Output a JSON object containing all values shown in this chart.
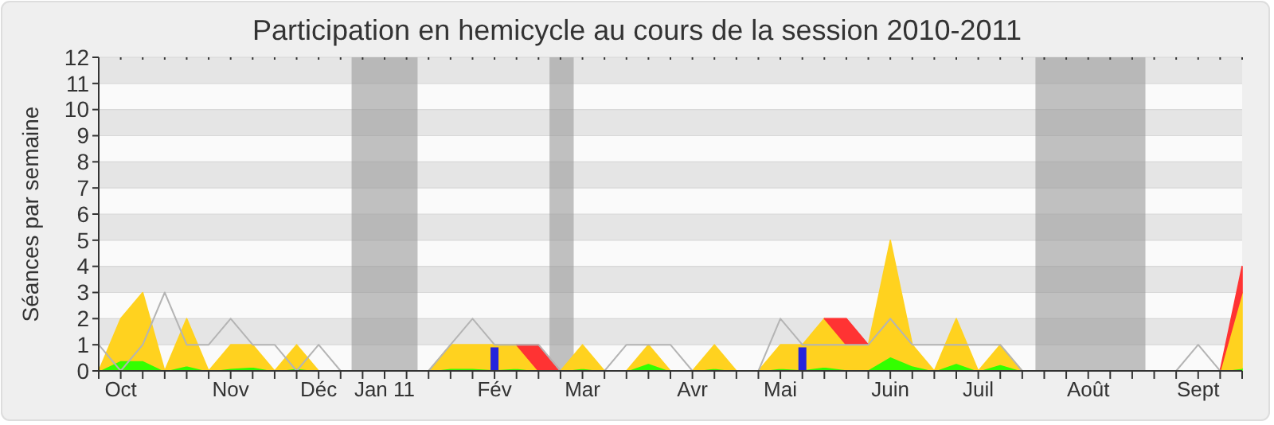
{
  "chart_data": {
    "type": "area",
    "title": "Participation en hemicycle au cours de la session 2010-2011",
    "ylabel": "Séances par semaine",
    "categories": [
      null,
      "Oct",
      null,
      null,
      null,
      null,
      "Nov",
      null,
      null,
      null,
      "Déc",
      null,
      null,
      "Jan 11",
      null,
      null,
      null,
      null,
      "Fév",
      null,
      null,
      null,
      "Mar",
      null,
      null,
      null,
      null,
      "Avr",
      null,
      null,
      null,
      "Mai",
      null,
      null,
      null,
      null,
      "Juin",
      null,
      null,
      null,
      "Juil",
      null,
      null,
      null,
      null,
      "Août",
      null,
      null,
      null,
      null,
      "Sept",
      null,
      null
    ],
    "ylim": [
      0,
      12
    ],
    "yticks": [
      0,
      1,
      2,
      3,
      4,
      5,
      6,
      7,
      8,
      9,
      10,
      11,
      12
    ],
    "grid": "y",
    "stacked": true,
    "series": [
      {
        "type": "area",
        "color": "#33ff00",
        "values": [
          0,
          0.4,
          0.4,
          0,
          0.2,
          0,
          0.1,
          0.15,
          0,
          0.1,
          0,
          0,
          0,
          0,
          0,
          0,
          0.1,
          0.1,
          0.05,
          0.1,
          0,
          0,
          0.1,
          0,
          0,
          0.3,
          0,
          0,
          0.1,
          0,
          0,
          0.1,
          0.05,
          0.15,
          0.05,
          0.05,
          0.55,
          0.2,
          0,
          0.3,
          0,
          0.25,
          0,
          0,
          0,
          0,
          0,
          0,
          0,
          0,
          0,
          0,
          0.1
        ]
      },
      {
        "type": "area",
        "color": "#ffd21f",
        "values": [
          0,
          1.6,
          2.6,
          0,
          1.8,
          0,
          0.9,
          0.85,
          0,
          0.9,
          0,
          0,
          0,
          0,
          0,
          0,
          0.9,
          0.9,
          0.95,
          0.9,
          0,
          0,
          0.9,
          0,
          0,
          0.7,
          0,
          0,
          0.9,
          0,
          0,
          0.9,
          0.95,
          1.85,
          0.95,
          0.95,
          4.45,
          0.8,
          0,
          1.7,
          0,
          0.75,
          0,
          0,
          0,
          0,
          0,
          0,
          0,
          0,
          0,
          0,
          2.9
        ]
      },
      {
        "color": "#ff3333",
        "values": [
          null,
          null,
          null,
          null,
          null,
          null,
          null,
          null,
          null,
          null,
          null,
          null,
          null,
          null,
          null,
          null,
          null,
          null,
          null,
          0,
          1,
          0,
          null,
          null,
          null,
          null,
          null,
          null,
          null,
          null,
          null,
          null,
          null,
          0,
          1,
          0,
          null,
          null,
          null,
          null,
          null,
          null,
          null,
          null,
          null,
          null,
          null,
          null,
          null,
          null,
          null,
          0,
          1
        ]
      },
      {
        "type": "line",
        "color": "#b4b4b4",
        "values": [
          1,
          0,
          1,
          3,
          1,
          1,
          2,
          1,
          1,
          0,
          1,
          0,
          0,
          0,
          0,
          0,
          1,
          2,
          1,
          1,
          1,
          0,
          0,
          0,
          1,
          1,
          1,
          0,
          0,
          0,
          0,
          2,
          1,
          1,
          1,
          1,
          2,
          1,
          1,
          1,
          1,
          1,
          0,
          0,
          0,
          0,
          0,
          0,
          0,
          0,
          1,
          0,
          0
        ]
      },
      {
        "type": "bar",
        "color": "#2424dd",
        "values": [
          null,
          null,
          null,
          null,
          null,
          null,
          null,
          null,
          null,
          null,
          null,
          null,
          null,
          null,
          null,
          null,
          null,
          null,
          0.9,
          null,
          null,
          null,
          null,
          null,
          null,
          null,
          null,
          null,
          null,
          null,
          null,
          null,
          0.9,
          null,
          null,
          null,
          null,
          null,
          null,
          null,
          null,
          null,
          null,
          null,
          null,
          null,
          null,
          null,
          null,
          null,
          null,
          null,
          null
        ]
      }
    ]
  }
}
